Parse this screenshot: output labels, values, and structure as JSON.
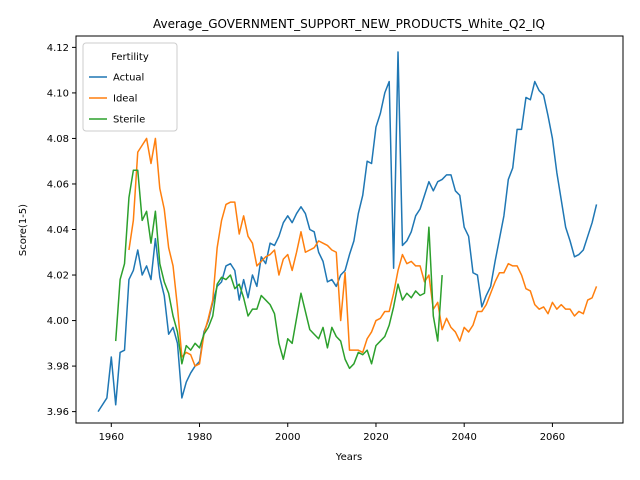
{
  "chart_data": {
    "type": "line",
    "title": "Average_GOVERNMENT_SUPPORT_NEW_PRODUCTS_White_Q2_IQ",
    "xlabel": "Years",
    "ylabel": "Score(1-5)",
    "xlim": [
      1952,
      2076
    ],
    "ylim": [
      3.955,
      4.125
    ],
    "xticks": [
      1960,
      1980,
      2000,
      2020,
      2040,
      2060
    ],
    "yticks": [
      3.96,
      3.98,
      4.0,
      4.02,
      4.04,
      4.06,
      4.08,
      4.1,
      4.12
    ],
    "ytick_labels": [
      "3.96",
      "3.98",
      "4.00",
      "4.02",
      "4.04",
      "4.06",
      "4.08",
      "4.10",
      "4.12"
    ],
    "grid": false,
    "legend": {
      "title": "Fertility",
      "placement": "top-left"
    },
    "series": [
      {
        "name": "Actual",
        "color": "#1f77b4",
        "points": [
          [
            1957,
            3.96
          ],
          [
            1959,
            3.966
          ],
          [
            1960,
            3.984
          ],
          [
            1961,
            3.963
          ],
          [
            1962,
            3.986
          ],
          [
            1963,
            3.987
          ],
          [
            1964,
            4.018
          ],
          [
            1965,
            4.022
          ],
          [
            1966,
            4.031
          ],
          [
            1967,
            4.02
          ],
          [
            1968,
            4.024
          ],
          [
            1969,
            4.018
          ],
          [
            1970,
            4.036
          ],
          [
            1971,
            4.019
          ],
          [
            1972,
            4.011
          ],
          [
            1973,
            3.994
          ],
          [
            1974,
            3.997
          ],
          [
            1975,
            3.99
          ],
          [
            1976,
            3.966
          ],
          [
            1977,
            3.973
          ],
          [
            1978,
            3.977
          ],
          [
            1979,
            3.98
          ],
          [
            1980,
            3.982
          ],
          [
            1981,
            3.995
          ],
          [
            1982,
            4.0
          ],
          [
            1983,
            4.008
          ],
          [
            1984,
            4.015
          ],
          [
            1985,
            4.017
          ],
          [
            1986,
            4.024
          ],
          [
            1987,
            4.025
          ],
          [
            1988,
            4.022
          ],
          [
            1989,
            4.009
          ],
          [
            1990,
            4.018
          ],
          [
            1991,
            4.01
          ],
          [
            1992,
            4.02
          ],
          [
            1993,
            4.015
          ],
          [
            1994,
            4.028
          ],
          [
            1995,
            4.025
          ],
          [
            1996,
            4.034
          ],
          [
            1997,
            4.033
          ],
          [
            1998,
            4.037
          ],
          [
            1999,
            4.043
          ],
          [
            2000,
            4.046
          ],
          [
            2001,
            4.043
          ],
          [
            2002,
            4.047
          ],
          [
            2003,
            4.05
          ],
          [
            2004,
            4.047
          ],
          [
            2005,
            4.04
          ],
          [
            2006,
            4.039
          ],
          [
            2007,
            4.03
          ],
          [
            2008,
            4.026
          ],
          [
            2009,
            4.017
          ],
          [
            2010,
            4.018
          ],
          [
            2011,
            4.015
          ],
          [
            2012,
            4.02
          ],
          [
            2013,
            4.022
          ],
          [
            2014,
            4.029
          ],
          [
            2015,
            4.035
          ],
          [
            2016,
            4.047
          ],
          [
            2017,
            4.055
          ],
          [
            2018,
            4.07
          ],
          [
            2019,
            4.069
          ],
          [
            2020,
            4.085
          ],
          [
            2021,
            4.091
          ],
          [
            2022,
            4.1
          ],
          [
            2023,
            4.105
          ],
          [
            2024,
            4.023
          ],
          [
            2025,
            4.118
          ],
          [
            2026,
            4.033
          ],
          [
            2027,
            4.035
          ],
          [
            2028,
            4.039
          ],
          [
            2029,
            4.046
          ],
          [
            2030,
            4.049
          ],
          [
            2031,
            4.055
          ],
          [
            2032,
            4.061
          ],
          [
            2033,
            4.057
          ],
          [
            2034,
            4.061
          ],
          [
            2035,
            4.062
          ],
          [
            2036,
            4.064
          ],
          [
            2037,
            4.064
          ],
          [
            2038,
            4.057
          ],
          [
            2039,
            4.055
          ],
          [
            2040,
            4.041
          ],
          [
            2041,
            4.037
          ],
          [
            2042,
            4.021
          ],
          [
            2043,
            4.02
          ],
          [
            2044,
            4.006
          ],
          [
            2045,
            4.011
          ],
          [
            2046,
            4.015
          ],
          [
            2047,
            4.026
          ],
          [
            2048,
            4.036
          ],
          [
            2049,
            4.046
          ],
          [
            2050,
            4.062
          ],
          [
            2051,
            4.067
          ],
          [
            2052,
            4.084
          ],
          [
            2053,
            4.084
          ],
          [
            2054,
            4.098
          ],
          [
            2055,
            4.097
          ],
          [
            2056,
            4.105
          ],
          [
            2057,
            4.101
          ],
          [
            2058,
            4.099
          ],
          [
            2059,
            4.09
          ],
          [
            2060,
            4.08
          ],
          [
            2061,
            4.065
          ],
          [
            2062,
            4.053
          ],
          [
            2063,
            4.041
          ],
          [
            2064,
            4.035
          ],
          [
            2065,
            4.028
          ],
          [
            2066,
            4.029
          ],
          [
            2067,
            4.031
          ],
          [
            2068,
            4.037
          ],
          [
            2069,
            4.043
          ],
          [
            2070,
            4.051
          ]
        ]
      },
      {
        "name": "Ideal",
        "color": "#ff7f0e",
        "points": [
          [
            1964,
            4.031
          ],
          [
            1965,
            4.044
          ],
          [
            1966,
            4.074
          ],
          [
            1967,
            4.077
          ],
          [
            1968,
            4.08
          ],
          [
            1969,
            4.069
          ],
          [
            1970,
            4.08
          ],
          [
            1971,
            4.058
          ],
          [
            1972,
            4.049
          ],
          [
            1973,
            4.032
          ],
          [
            1974,
            4.024
          ],
          [
            1975,
            4.006
          ],
          [
            1976,
            3.984
          ],
          [
            1977,
            3.986
          ],
          [
            1978,
            3.985
          ],
          [
            1979,
            3.98
          ],
          [
            1980,
            3.981
          ],
          [
            1981,
            3.994
          ],
          [
            1982,
            4.001
          ],
          [
            1983,
            4.009
          ],
          [
            1984,
            4.032
          ],
          [
            1985,
            4.044
          ],
          [
            1986,
            4.051
          ],
          [
            1987,
            4.052
          ],
          [
            1988,
            4.052
          ],
          [
            1989,
            4.038
          ],
          [
            1990,
            4.046
          ],
          [
            1991,
            4.037
          ],
          [
            1992,
            4.034
          ],
          [
            1993,
            4.024
          ],
          [
            1994,
            4.026
          ],
          [
            1995,
            4.028
          ],
          [
            1996,
            4.029
          ],
          [
            1997,
            4.031
          ],
          [
            1998,
            4.02
          ],
          [
            1999,
            4.027
          ],
          [
            2000,
            4.029
          ],
          [
            2001,
            4.022
          ],
          [
            2002,
            4.03
          ],
          [
            2003,
            4.039
          ],
          [
            2004,
            4.03
          ],
          [
            2005,
            4.031
          ],
          [
            2006,
            4.032
          ],
          [
            2007,
            4.035
          ],
          [
            2008,
            4.034
          ],
          [
            2009,
            4.033
          ],
          [
            2010,
            4.031
          ],
          [
            2011,
            4.03
          ],
          [
            2012,
            4.0
          ],
          [
            2013,
            4.021
          ],
          [
            2014,
            3.987
          ],
          [
            2015,
            3.987
          ],
          [
            2016,
            3.987
          ],
          [
            2017,
            3.986
          ],
          [
            2018,
            3.992
          ],
          [
            2019,
            3.995
          ],
          [
            2020,
            4.0
          ],
          [
            2021,
            4.001
          ],
          [
            2022,
            4.004
          ],
          [
            2023,
            4.004
          ],
          [
            2024,
            4.012
          ],
          [
            2025,
            4.022
          ],
          [
            2026,
            4.029
          ],
          [
            2027,
            4.025
          ],
          [
            2028,
            4.026
          ],
          [
            2029,
            4.024
          ],
          [
            2030,
            4.024
          ],
          [
            2031,
            4.017
          ],
          [
            2032,
            4.02
          ],
          [
            2033,
            4.005
          ],
          [
            2034,
            4.008
          ],
          [
            2035,
            3.996
          ],
          [
            2036,
            4.001
          ],
          [
            2037,
            3.997
          ],
          [
            2038,
            3.995
          ],
          [
            2039,
            3.991
          ],
          [
            2040,
            3.997
          ],
          [
            2041,
            3.995
          ],
          [
            2042,
            3.998
          ],
          [
            2043,
            4.004
          ],
          [
            2044,
            4.004
          ],
          [
            2045,
            4.007
          ],
          [
            2046,
            4.012
          ],
          [
            2047,
            4.017
          ],
          [
            2048,
            4.021
          ],
          [
            2049,
            4.021
          ],
          [
            2050,
            4.025
          ],
          [
            2051,
            4.024
          ],
          [
            2052,
            4.024
          ],
          [
            2053,
            4.02
          ],
          [
            2054,
            4.014
          ],
          [
            2055,
            4.013
          ],
          [
            2056,
            4.007
          ],
          [
            2057,
            4.005
          ],
          [
            2058,
            4.006
          ],
          [
            2059,
            4.003
          ],
          [
            2060,
            4.008
          ],
          [
            2061,
            4.005
          ],
          [
            2062,
            4.007
          ],
          [
            2063,
            4.005
          ],
          [
            2064,
            4.005
          ],
          [
            2065,
            4.002
          ],
          [
            2066,
            4.004
          ],
          [
            2067,
            4.003
          ],
          [
            2068,
            4.009
          ],
          [
            2069,
            4.01
          ],
          [
            2070,
            4.015
          ]
        ]
      },
      {
        "name": "Sterile",
        "color": "#2ca02c",
        "points": [
          [
            1961,
            3.991
          ],
          [
            1962,
            4.018
          ],
          [
            1963,
            4.025
          ],
          [
            1964,
            4.054
          ],
          [
            1965,
            4.066
          ],
          [
            1966,
            4.066
          ],
          [
            1967,
            4.044
          ],
          [
            1968,
            4.048
          ],
          [
            1969,
            4.034
          ],
          [
            1970,
            4.048
          ],
          [
            1971,
            4.025
          ],
          [
            1972,
            4.017
          ],
          [
            1973,
            4.012
          ],
          [
            1974,
            4.002
          ],
          [
            1975,
            3.995
          ],
          [
            1976,
            3.981
          ],
          [
            1977,
            3.989
          ],
          [
            1978,
            3.987
          ],
          [
            1979,
            3.99
          ],
          [
            1980,
            3.988
          ],
          [
            1981,
            3.994
          ],
          [
            1982,
            3.997
          ],
          [
            1983,
            4.002
          ],
          [
            1984,
            4.016
          ],
          [
            1985,
            4.019
          ],
          [
            1986,
            4.018
          ],
          [
            1987,
            4.02
          ],
          [
            1988,
            4.014
          ],
          [
            1989,
            4.016
          ],
          [
            1990,
            4.01
          ],
          [
            1991,
            4.002
          ],
          [
            1992,
            4.005
          ],
          [
            1993,
            4.005
          ],
          [
            1994,
            4.011
          ],
          [
            1995,
            4.009
          ],
          [
            1996,
            4.007
          ],
          [
            1997,
            4.003
          ],
          [
            1998,
            3.99
          ],
          [
            1999,
            3.983
          ],
          [
            2000,
            3.992
          ],
          [
            2001,
            3.99
          ],
          [
            2002,
            4.001
          ],
          [
            2003,
            4.012
          ],
          [
            2004,
            4.004
          ],
          [
            2005,
            3.996
          ],
          [
            2006,
            3.994
          ],
          [
            2007,
            3.992
          ],
          [
            2008,
            3.997
          ],
          [
            2009,
            3.988
          ],
          [
            2010,
            3.997
          ],
          [
            2011,
            3.993
          ],
          [
            2012,
            3.991
          ],
          [
            2013,
            3.983
          ],
          [
            2014,
            3.979
          ],
          [
            2015,
            3.981
          ],
          [
            2016,
            3.986
          ],
          [
            2017,
            3.985
          ],
          [
            2018,
            3.987
          ],
          [
            2019,
            3.981
          ],
          [
            2020,
            3.989
          ],
          [
            2021,
            3.991
          ],
          [
            2022,
            3.993
          ],
          [
            2023,
            3.998
          ],
          [
            2024,
            4.006
          ],
          [
            2025,
            4.016
          ],
          [
            2026,
            4.009
          ],
          [
            2027,
            4.012
          ],
          [
            2028,
            4.01
          ],
          [
            2029,
            4.013
          ],
          [
            2030,
            4.011
          ],
          [
            2031,
            4.012
          ],
          [
            2032,
            4.041
          ],
          [
            2033,
            4.002
          ],
          [
            2034,
            3.991
          ],
          [
            2035,
            4.02
          ]
        ]
      }
    ]
  }
}
